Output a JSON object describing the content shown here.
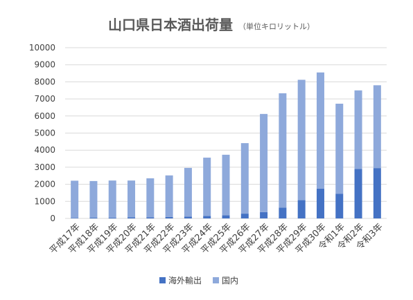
{
  "chart_data": {
    "type": "bar",
    "stacked": true,
    "title": "山口県日本酒出荷量",
    "subtitle": "（単位キロリットル）",
    "xlabel": "",
    "ylabel": "",
    "ylim": [
      0,
      10000
    ],
    "yticks": [
      0,
      1000,
      2000,
      3000,
      4000,
      5000,
      6000,
      7000,
      8000,
      9000,
      10000
    ],
    "grid": true,
    "legend_position": "bottom",
    "categories": [
      "平成17年",
      "平成18年",
      "平成19年",
      "平成20年",
      "平成21年",
      "平成22年",
      "平成23年",
      "平成24年",
      "平成25年",
      "平成26年",
      "平成27年",
      "平成28年",
      "平成29年",
      "平成30年",
      "令和1年",
      "令和2年",
      "令和3年"
    ],
    "series": [
      {
        "name": "海外輸出",
        "color": "#4472c4",
        "values": [
          30,
          40,
          50,
          60,
          70,
          90,
          110,
          140,
          180,
          280,
          370,
          630,
          1070,
          1750,
          1450,
          2900,
          2950
        ]
      },
      {
        "name": "国内",
        "color": "#8ea9db",
        "values": [
          2180,
          2150,
          2170,
          2160,
          2280,
          2430,
          2850,
          3420,
          3550,
          4130,
          5750,
          6700,
          7050,
          6800,
          5270,
          4600,
          4850
        ]
      }
    ]
  }
}
